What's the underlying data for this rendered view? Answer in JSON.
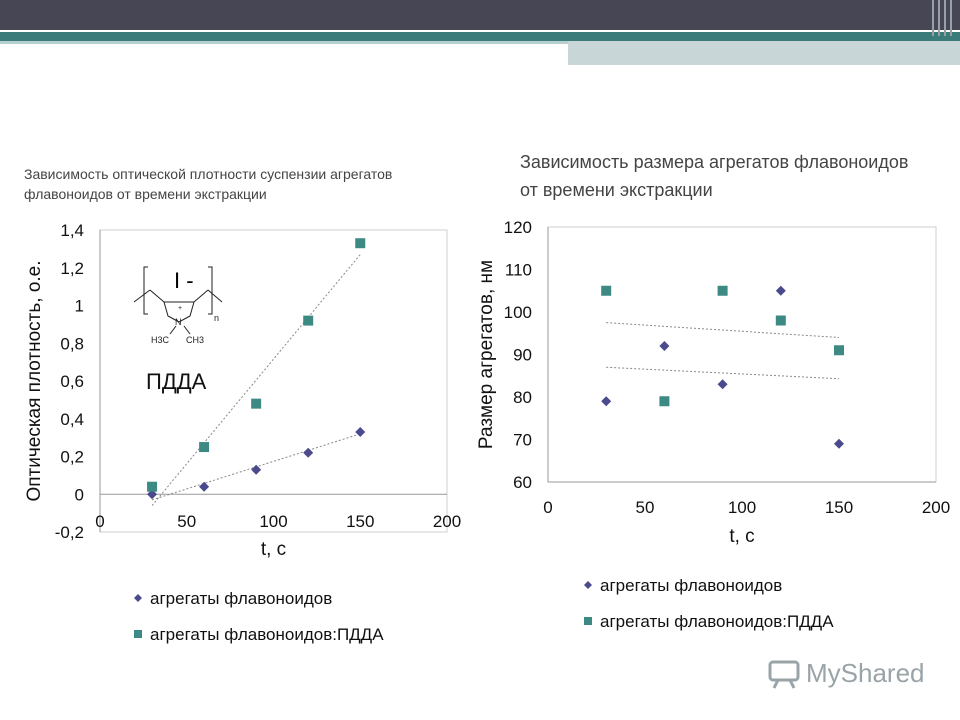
{
  "slide": {
    "caption_left": "Зависимость оптической плотности суспензии агрегатов флавоноидов от времени экстракции",
    "caption_right": "Зависимость размера агрегатов флавоноидов от времени экстракции",
    "structure_label": "ПДДА",
    "structure_ion": "I -",
    "watermark": "MyShared"
  },
  "colors": {
    "diamond": "#4a4a8c",
    "square": "#3d8a84",
    "band_dark": "#464654",
    "band_teal": "#3b7c7a"
  },
  "chart_data": [
    {
      "type": "scatter",
      "title": "",
      "xlabel": "t, c",
      "ylabel": "Оптическая плотность, о.е.",
      "xlim": [
        0,
        200
      ],
      "ylim": [
        -0.2,
        1.4
      ],
      "x_ticks": [
        "0",
        "50",
        "100",
        "150",
        "200"
      ],
      "y_ticks": [
        "-0,2",
        "0",
        "0,2",
        "0,4",
        "0,6",
        "0,8",
        "1",
        "1,2",
        "1,4"
      ],
      "grid": false,
      "legend_position": "bottom",
      "series": [
        {
          "name": "агрегаты флавоноидов",
          "marker": "diamond",
          "x": [
            30,
            60,
            90,
            120,
            150
          ],
          "y": [
            0.0,
            0.04,
            0.13,
            0.22,
            0.33
          ],
          "trendline": {
            "x": [
              30,
              150
            ],
            "y": [
              -0.03,
              0.32
            ]
          }
        },
        {
          "name": "агрегаты флавоноидов:ПДДА",
          "marker": "square",
          "x": [
            30,
            60,
            90,
            120,
            150
          ],
          "y": [
            0.04,
            0.25,
            0.48,
            0.92,
            1.33
          ],
          "trendline": {
            "x": [
              30,
              150
            ],
            "y": [
              -0.06,
              1.27
            ]
          }
        }
      ]
    },
    {
      "type": "scatter",
      "title": "",
      "xlabel": "t, c",
      "ylabel": "Размер агрегатов, нм",
      "xlim": [
        0,
        200
      ],
      "ylim": [
        60,
        120
      ],
      "x_ticks": [
        "0",
        "50",
        "100",
        "150",
        "200"
      ],
      "y_ticks": [
        "60",
        "70",
        "80",
        "90",
        "100",
        "110",
        "120"
      ],
      "grid": false,
      "legend_position": "bottom",
      "series": [
        {
          "name": "агрегаты флавоноидов",
          "marker": "diamond",
          "x": [
            30,
            60,
            90,
            120,
            150
          ],
          "y": [
            79,
            92,
            83,
            105,
            69
          ],
          "trendline": {
            "x": [
              30,
              150
            ],
            "y": [
              87,
              84.3
            ]
          }
        },
        {
          "name": "агрегаты флавоноидов:ПДДА",
          "marker": "square",
          "x": [
            30,
            60,
            90,
            120,
            150
          ],
          "y": [
            105,
            79,
            105,
            98,
            91
          ],
          "trendline": {
            "x": [
              30,
              150
            ],
            "y": [
              97.5,
              94
            ]
          }
        }
      ]
    }
  ]
}
